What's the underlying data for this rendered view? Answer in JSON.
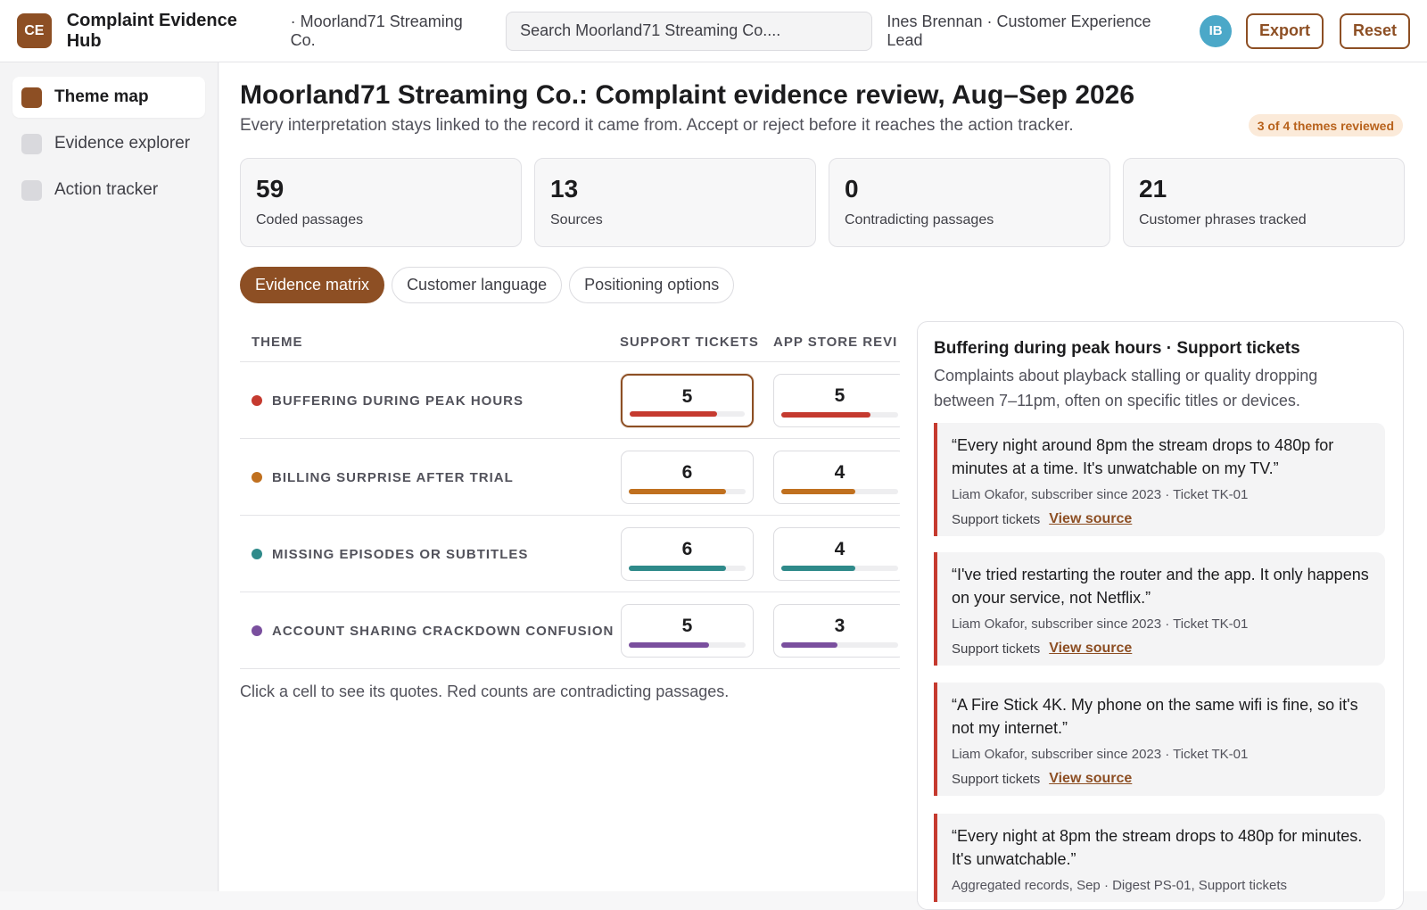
{
  "header": {
    "logo_text": "CE",
    "app_title": "Complaint Evidence Hub",
    "workspace": "· Moorland71 Streaming Co.",
    "search_placeholder": "Search Moorland71 Streaming Co....",
    "user_label": "Ines Brennan · Customer Experience Lead",
    "avatar_initials": "IB",
    "export_label": "Export",
    "reset_label": "Reset"
  },
  "sidebar": {
    "items": [
      {
        "label": "Theme map",
        "active": true
      },
      {
        "label": "Evidence explorer",
        "active": false
      },
      {
        "label": "Action tracker",
        "active": false
      }
    ]
  },
  "page": {
    "title": "Moorland71 Streaming Co.: Complaint evidence review, Aug–Sep 2026",
    "subtitle": "Every interpretation stays linked to the record it came from. Accept or reject before it reaches the action tracker.",
    "review_badge": "3 of 4 themes reviewed"
  },
  "stats": [
    {
      "value": "59",
      "label": "Coded passages"
    },
    {
      "value": "13",
      "label": "Sources"
    },
    {
      "value": "0",
      "label": "Contradicting passages"
    },
    {
      "value": "21",
      "label": "Customer phrases tracked"
    }
  ],
  "tabs": [
    {
      "label": "Evidence matrix",
      "active": true
    },
    {
      "label": "Customer language",
      "active": false
    },
    {
      "label": "Positioning options",
      "active": false
    }
  ],
  "matrix": {
    "columns": [
      "THEME",
      "SUPPORT TICKETS",
      "APP STORE REVI"
    ],
    "rows": [
      {
        "theme": "BUFFERING DURING PEAK HOURS",
        "color": "#c53a2f",
        "support": "5",
        "support_fill": 0.76,
        "app": "5",
        "app_fill": 0.76,
        "selected": true
      },
      {
        "theme": "BILLING SURPRISE AFTER TRIAL",
        "color": "#c0701f",
        "support": "6",
        "support_fill": 0.83,
        "app": "4",
        "app_fill": 0.63,
        "selected": false
      },
      {
        "theme": "MISSING EPISODES OR SUBTITLES",
        "color": "#2f8a8a",
        "support": "6",
        "support_fill": 0.83,
        "app": "4",
        "app_fill": 0.63,
        "selected": false
      },
      {
        "theme": "ACCOUNT SHARING CRACKDOWN CONFUSION",
        "color": "#7a4f9e",
        "support": "5",
        "support_fill": 0.69,
        "app": "3",
        "app_fill": 0.48,
        "selected": false
      }
    ],
    "note": "Click a cell to see its quotes. Red counts are contradicting passages."
  },
  "panel": {
    "title": "Buffering during peak hours · Support tickets",
    "description": "Complaints about playback stalling or quality dropping between 7–11pm, often on specific titles or devices.",
    "quotes": [
      {
        "text": "“Every night around 8pm the stream drops to 480p for minutes at a time. It's unwatchable on my TV.”",
        "meta": "Liam Okafor, subscriber since 2023 · Ticket TK-01",
        "source": "Support tickets",
        "link": "View source"
      },
      {
        "text": "“I've tried restarting the router and the app. It only happens on your service, not Netflix.”",
        "meta": "Liam Okafor, subscriber since 2023 · Ticket TK-01",
        "source": "Support tickets",
        "link": "View source"
      },
      {
        "text": "“A Fire Stick 4K. My phone on the same wifi is fine, so it's not my internet.”",
        "meta": "Liam Okafor, subscriber since 2023 · Ticket TK-01",
        "source": "Support tickets",
        "link": "View source"
      },
      {
        "text": "“Every night at 8pm the stream drops to 480p for minutes. It's unwatchable.”",
        "meta": "Aggregated records, Sep · Digest PS-01, Support tickets",
        "source": "",
        "link": ""
      }
    ]
  }
}
